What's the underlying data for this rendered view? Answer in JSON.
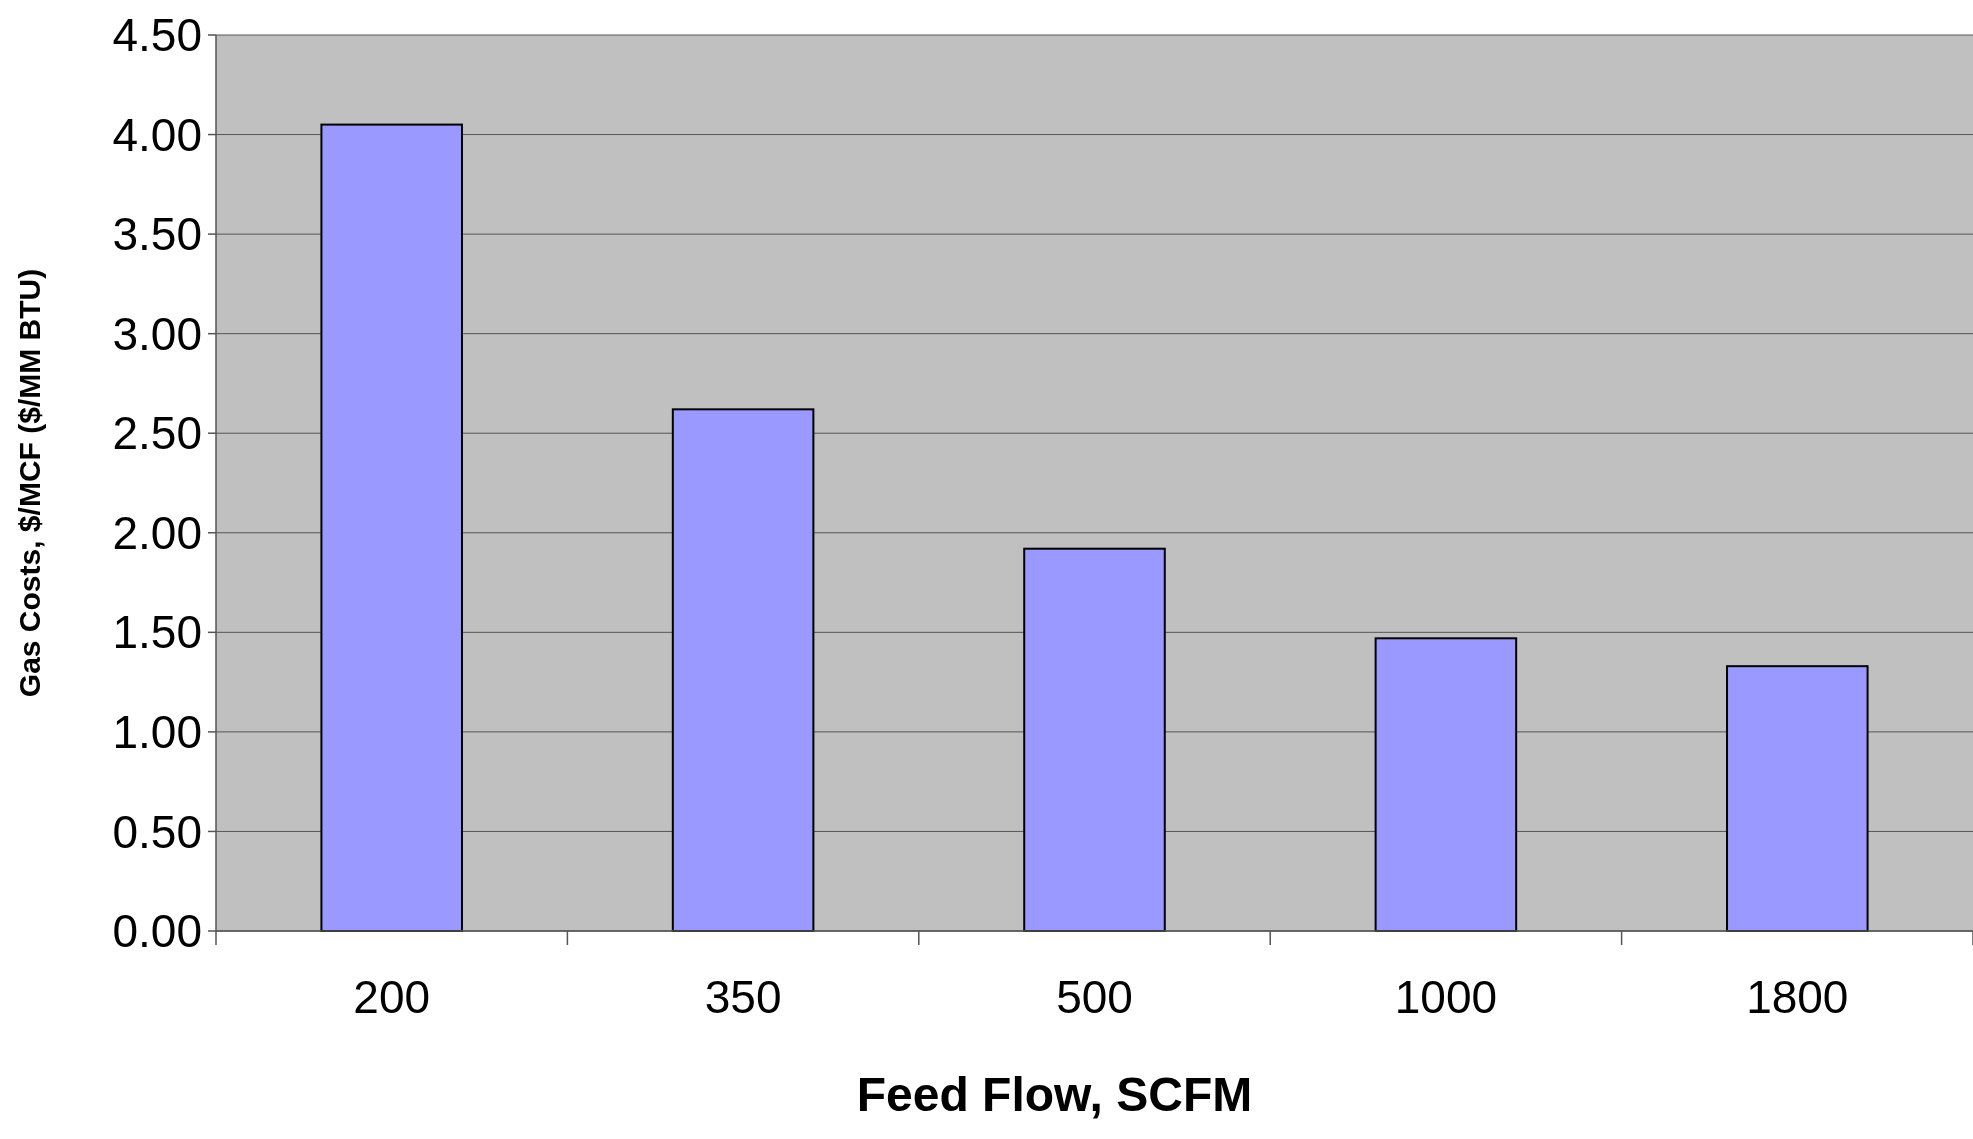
{
  "chart_data": {
    "type": "bar",
    "xlabel": "Feed Flow, SCFM",
    "ylabel": "Gas Costs, $/MCF ($/MM BTU)",
    "categories": [
      "200",
      "350",
      "500",
      "1000",
      "1800"
    ],
    "values": [
      4.05,
      2.62,
      1.92,
      1.47,
      1.33
    ],
    "color": "#9999ff",
    "ylim": [
      0,
      4.5
    ],
    "yticks": [
      {
        "value": 0,
        "label": "0.00"
      },
      {
        "value": 0.5,
        "label": "0.50"
      },
      {
        "value": 1,
        "label": "1.00"
      },
      {
        "value": 1.5,
        "label": "1.50"
      },
      {
        "value": 2,
        "label": "2.00"
      },
      {
        "value": 2.5,
        "label": "2.50"
      },
      {
        "value": 3,
        "label": "3.00"
      },
      {
        "value": 3.5,
        "label": "3.50"
      },
      {
        "value": 4,
        "label": "4.00"
      },
      {
        "value": 4.5,
        "label": "4.50"
      }
    ],
    "grid": "y"
  }
}
